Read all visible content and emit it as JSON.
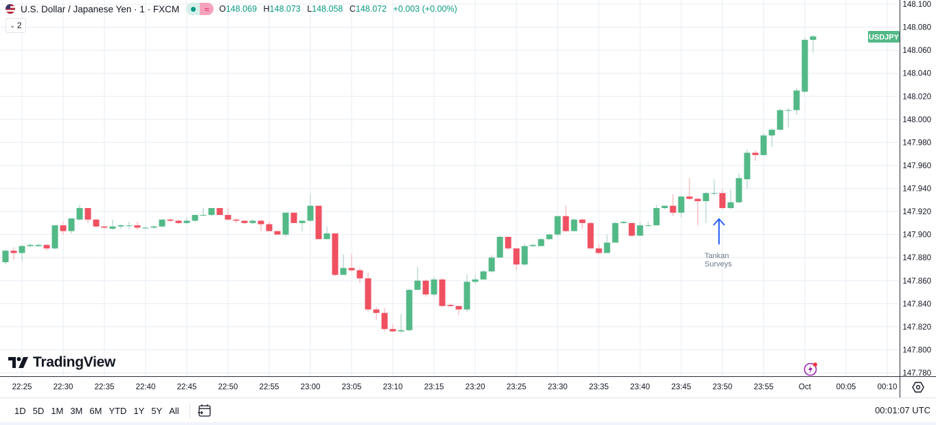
{
  "header": {
    "symbol_title": "U.S. Dollar / Japanese Yen · 1 · FXCM",
    "open_label": "O",
    "open": "148.069",
    "high_label": "H",
    "high": "148.073",
    "low_label": "L",
    "low": "148.058",
    "close_label": "C",
    "close": "148.072",
    "change": "+0.003 (+0.00%)",
    "indicator_count": "2",
    "market_status_icon": "market-open-dot",
    "data_icon": "approx-icon"
  },
  "logo": "TradingView",
  "price_badge": "USDJPY",
  "annotation": {
    "line1": "Tankan",
    "line2": "Surveys"
  },
  "bottom": {
    "ranges": [
      "1D",
      "5D",
      "1M",
      "3M",
      "6M",
      "YTD",
      "1Y",
      "5Y",
      "All"
    ],
    "clock": "00:01:07 UTC"
  },
  "colors": {
    "up": "#53b987",
    "down": "#ef5161",
    "up_wick": "#9cc9c4",
    "down_wick": "#f5a0a9",
    "grid": "#e7ecf2",
    "arrow": "#2962ff"
  },
  "chart_data": {
    "type": "candlestick",
    "title": "U.S. Dollar / Japanese Yen · 1 · FXCM",
    "interval_minutes": 1,
    "start_time": "22:23",
    "ylim": [
      147.78,
      148.1
    ],
    "y_ticks": [
      "148.100",
      "148.080",
      "148.060",
      "148.040",
      "148.020",
      "148.000",
      "147.980",
      "147.960",
      "147.940",
      "147.920",
      "147.900",
      "147.880",
      "147.860",
      "147.840",
      "147.820",
      "147.800",
      "147.780"
    ],
    "x_ticks": [
      "22:25",
      "22:30",
      "22:35",
      "22:40",
      "22:45",
      "22:50",
      "22:55",
      "23:00",
      "23:05",
      "23:10",
      "23:15",
      "23:20",
      "23:25",
      "23:30",
      "23:35",
      "23:40",
      "23:45",
      "23:50",
      "23:55",
      "Oct",
      "00:05",
      "00:10"
    ],
    "grid": true,
    "annotation": {
      "text": "Tankan Surveys",
      "at_time": "23:50"
    },
    "ohlc": [
      [
        147.876,
        147.887,
        147.874,
        147.886
      ],
      [
        147.886,
        147.889,
        147.878,
        147.884
      ],
      [
        147.884,
        147.891,
        147.877,
        147.89
      ],
      [
        147.89,
        147.892,
        147.889,
        147.891
      ],
      [
        147.89,
        147.892,
        147.889,
        147.891
      ],
      [
        147.891,
        147.892,
        147.886,
        147.888
      ],
      [
        147.888,
        147.908,
        147.887,
        147.908
      ],
      [
        147.908,
        147.911,
        147.9,
        147.903
      ],
      [
        147.903,
        147.914,
        147.901,
        147.914
      ],
      [
        147.913,
        147.926,
        147.912,
        147.923
      ],
      [
        147.923,
        147.923,
        147.91,
        147.913
      ],
      [
        147.913,
        147.913,
        147.906,
        147.907
      ],
      [
        147.907,
        147.907,
        147.905,
        147.906
      ],
      [
        147.905,
        147.913,
        147.904,
        147.907
      ],
      [
        147.907,
        147.909,
        147.905,
        147.908
      ],
      [
        147.908,
        147.911,
        147.905,
        147.908
      ],
      [
        147.908,
        147.911,
        147.904,
        147.906
      ],
      [
        147.906,
        147.907,
        147.905,
        147.906
      ],
      [
        147.906,
        147.908,
        147.905,
        147.907
      ],
      [
        147.907,
        147.913,
        147.906,
        147.913
      ],
      [
        147.913,
        147.914,
        147.911,
        147.912
      ],
      [
        147.912,
        147.913,
        147.909,
        147.91
      ],
      [
        147.91,
        147.915,
        147.909,
        147.912
      ],
      [
        147.912,
        147.917,
        147.911,
        147.917
      ],
      [
        147.917,
        147.923,
        147.916,
        147.917
      ],
      [
        147.917,
        147.923,
        147.916,
        147.923
      ],
      [
        147.923,
        147.923,
        147.917,
        147.917
      ],
      [
        147.917,
        147.923,
        147.912,
        147.913
      ],
      [
        147.913,
        147.914,
        147.91,
        147.912
      ],
      [
        147.912,
        147.912,
        147.909,
        147.91
      ],
      [
        147.91,
        147.913,
        147.909,
        147.912
      ],
      [
        147.912,
        147.913,
        147.903,
        147.909
      ],
      [
        147.909,
        147.911,
        147.903,
        147.903
      ],
      [
        147.903,
        147.903,
        147.9,
        147.9
      ],
      [
        147.9,
        147.919,
        147.898,
        147.919
      ],
      [
        147.919,
        147.919,
        147.91,
        147.91
      ],
      [
        147.91,
        147.912,
        147.903,
        147.912
      ],
      [
        147.912,
        147.935,
        147.911,
        147.925
      ],
      [
        147.925,
        147.925,
        147.896,
        147.896
      ],
      [
        147.896,
        147.907,
        147.896,
        147.901
      ],
      [
        147.901,
        147.901,
        147.864,
        147.865
      ],
      [
        147.865,
        147.883,
        147.865,
        147.871
      ],
      [
        147.871,
        147.883,
        147.868,
        147.869
      ],
      [
        147.869,
        147.871,
        147.858,
        147.862
      ],
      [
        147.862,
        147.867,
        147.833,
        147.835
      ],
      [
        147.835,
        147.837,
        147.826,
        147.832
      ],
      [
        147.832,
        147.836,
        147.816,
        147.818
      ],
      [
        147.818,
        147.822,
        147.815,
        147.816
      ],
      [
        147.816,
        147.831,
        147.815,
        147.817
      ],
      [
        147.817,
        147.853,
        147.816,
        147.852
      ],
      [
        147.852,
        147.872,
        147.852,
        147.86
      ],
      [
        147.86,
        147.861,
        147.846,
        147.848
      ],
      [
        147.848,
        147.863,
        147.846,
        147.861
      ],
      [
        147.861,
        147.862,
        147.837,
        147.838
      ],
      [
        147.839,
        147.84,
        147.837,
        147.838
      ],
      [
        147.838,
        147.838,
        147.83,
        147.835
      ],
      [
        147.835,
        147.865,
        147.833,
        147.859
      ],
      [
        147.859,
        147.865,
        147.857,
        147.861
      ],
      [
        147.861,
        147.869,
        147.861,
        147.868
      ],
      [
        147.868,
        147.882,
        147.867,
        147.88
      ],
      [
        147.88,
        147.899,
        147.88,
        147.898
      ],
      [
        147.898,
        147.898,
        147.887,
        147.888
      ],
      [
        147.888,
        147.888,
        147.869,
        147.874
      ],
      [
        147.874,
        147.892,
        147.873,
        147.89
      ],
      [
        147.89,
        147.892,
        147.889,
        147.891
      ],
      [
        147.89,
        147.897,
        147.89,
        147.896
      ],
      [
        147.896,
        147.901,
        147.895,
        147.9
      ],
      [
        147.9,
        147.916,
        147.898,
        147.916
      ],
      [
        147.916,
        147.925,
        147.902,
        147.903
      ],
      [
        147.903,
        147.914,
        147.903,
        147.913
      ],
      [
        147.913,
        147.914,
        147.905,
        147.91
      ],
      [
        147.91,
        147.911,
        147.888,
        147.888
      ],
      [
        147.888,
        147.892,
        147.883,
        147.884
      ],
      [
        147.884,
        147.9,
        147.884,
        147.893
      ],
      [
        147.893,
        147.911,
        147.893,
        147.91
      ],
      [
        147.91,
        147.912,
        147.909,
        147.911
      ],
      [
        147.91,
        147.91,
        147.898,
        147.899
      ],
      [
        147.899,
        147.911,
        147.899,
        147.908
      ],
      [
        147.908,
        147.911,
        147.907,
        147.908
      ],
      [
        147.908,
        147.926,
        147.908,
        147.923
      ],
      [
        147.923,
        147.925,
        147.922,
        147.925
      ],
      [
        147.925,
        147.935,
        147.916,
        147.919
      ],
      [
        147.919,
        147.934,
        147.915,
        147.933
      ],
      [
        147.933,
        147.949,
        147.93,
        147.931
      ],
      [
        147.931,
        147.932,
        147.908,
        147.929
      ],
      [
        147.929,
        147.937,
        147.91,
        147.936
      ],
      [
        147.936,
        147.948,
        147.934,
        147.936
      ],
      [
        147.936,
        147.939,
        147.922,
        147.923
      ],
      [
        147.923,
        147.939,
        147.922,
        147.928
      ],
      [
        147.928,
        147.953,
        147.927,
        147.949
      ],
      [
        147.948,
        147.974,
        147.94,
        147.971
      ],
      [
        147.971,
        147.973,
        147.964,
        147.969
      ],
      [
        147.969,
        147.988,
        147.968,
        147.986
      ],
      [
        147.986,
        147.992,
        147.976,
        147.991
      ],
      [
        147.991,
        148.009,
        147.99,
        148.008
      ],
      [
        148.008,
        148.01,
        147.993,
        148.008
      ],
      [
        148.008,
        148.027,
        148.004,
        148.025
      ],
      [
        148.024,
        148.071,
        148.023,
        148.069
      ],
      [
        148.069,
        148.073,
        148.058,
        148.072
      ]
    ]
  }
}
